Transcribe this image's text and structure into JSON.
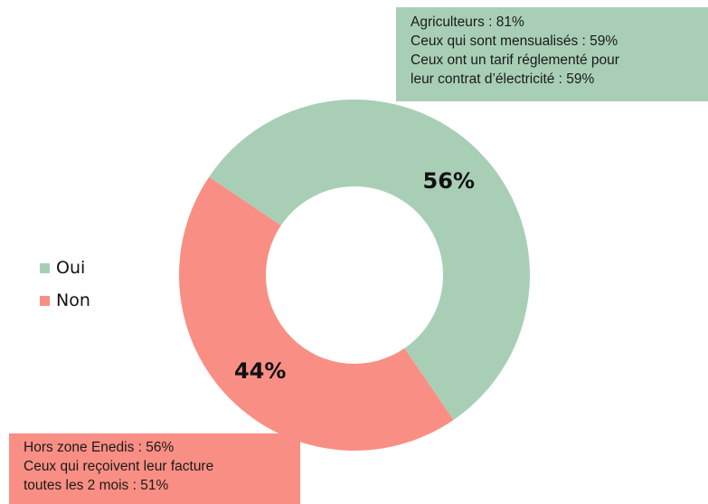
{
  "chart_data": {
    "type": "pie",
    "donut": true,
    "categories": [
      "Oui",
      "Non"
    ],
    "values": [
      56,
      44
    ],
    "value_labels": [
      "56%",
      "44%"
    ],
    "colors": [
      "#a8cfb6",
      "#f98f84"
    ],
    "legend": "left",
    "title": ""
  },
  "legend": {
    "items": [
      {
        "label": "Oui",
        "color": "#a8cfb6"
      },
      {
        "label": "Non",
        "color": "#f98f84"
      }
    ]
  },
  "callouts": {
    "oui": [
      "Agriculteurs : 81%",
      "Ceux qui sont mensualisés : 59%",
      "Ceux ont un tarif réglementé pour",
      "leur contrat d’électricité : 59%"
    ],
    "non": [
      "Hors zone Enedis : 56%",
      "Ceux qui reçoivent leur facture",
      "toutes les 2 mois : 51%"
    ]
  }
}
